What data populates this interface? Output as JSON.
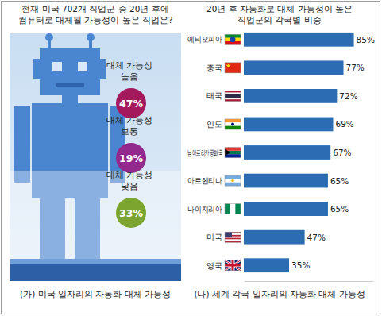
{
  "chart_data": [
    {
      "type": "circles",
      "title": "현재 미국 702개 직업군 중 20년 후에\n컴퓨터로 대체될 가능성이 높은 직업은?",
      "caption": "(가) 미국 일자리의 자동화 대체 가능성",
      "categories": [
        "대체 가능성\n높음",
        "대체 가능성\n보통",
        "대체 가능성\n낮음"
      ],
      "values": [
        47,
        19,
        33
      ],
      "value_labels": [
        "47%",
        "19%",
        "33%"
      ],
      "colors": [
        "#a3195b",
        "#94298d",
        "#7ba52e"
      ],
      "data_labels": true
    },
    {
      "type": "bar",
      "orientation": "horizontal",
      "title": "20년 후 자동화로 대체 가능성이 높은\n직업군의 각국별 비중",
      "caption": "(나) 세계 각국 일자리의 자동화 대체 가능성",
      "categories": [
        "에티오피아",
        "중국",
        "태국",
        "인도",
        "남아프리카공화국",
        "아르헨티나",
        "나이지리아",
        "미국",
        "영국"
      ],
      "values": [
        85,
        77,
        72,
        69,
        67,
        65,
        65,
        47,
        35
      ],
      "value_labels": [
        "85%",
        "77%",
        "72%",
        "69%",
        "67%",
        "65%",
        "65%",
        "47%",
        "35%"
      ],
      "color": "#2b6cb3",
      "xlim": [
        0,
        100
      ],
      "xticks": [],
      "tick_labels": false,
      "data_labels": true
    }
  ]
}
